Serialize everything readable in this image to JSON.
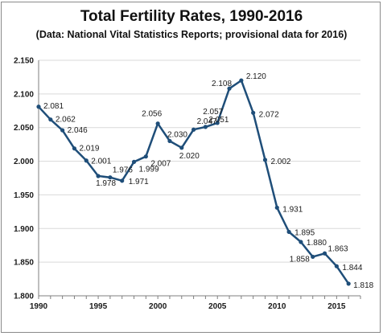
{
  "title": "Total Fertility Rates, 1990-2016",
  "subtitle": "(Data: National Vital Statistics Reports; provisional data for 2016)",
  "colors": {
    "line": "#1f4e79",
    "grid": "#d9d9d9",
    "axis": "#7f7f7f",
    "text": "#1a1a1a"
  },
  "chart_data": {
    "type": "line",
    "title": "Total Fertility Rates, 1990-2016",
    "subtitle": "(Data: National Vital Statistics Reports; provisional data for 2016)",
    "xlabel": "",
    "ylabel": "",
    "x": [
      1990,
      1991,
      1992,
      1993,
      1994,
      1995,
      1996,
      1997,
      1998,
      1999,
      2000,
      2001,
      2002,
      2003,
      2004,
      2005,
      2006,
      2007,
      2008,
      2009,
      2010,
      2011,
      2012,
      2013,
      2014,
      2015,
      2016
    ],
    "y": [
      2.081,
      2.062,
      2.046,
      2.019,
      2.001,
      1.978,
      1.976,
      1.971,
      1.999,
      2.007,
      2.056,
      2.03,
      2.02,
      2.047,
      2.051,
      2.057,
      2.108,
      2.12,
      2.072,
      2.002,
      1.931,
      1.895,
      1.88,
      1.858,
      1.863,
      1.844,
      1.818
    ],
    "data_labels": [
      "2.081",
      "2.062",
      "2.046",
      "2.019",
      "2.001",
      "1.978",
      "1.976",
      "1.971",
      "1.999",
      "2.007",
      "2.056",
      "2.030",
      "2.020",
      "2.047",
      "2.051",
      "2.057",
      "2.108",
      "2.120",
      "2.072",
      "2.002",
      "1.931",
      "1.895",
      "1.880",
      "1.858",
      "1.863",
      "1.844",
      "1.818"
    ],
    "xlim": [
      1990,
      2017
    ],
    "ylim": [
      1.8,
      2.15
    ],
    "x_ticks": [
      "1990",
      "1995",
      "2000",
      "2005",
      "2010",
      "2015"
    ],
    "y_ticks": [
      "1.800",
      "1.850",
      "1.900",
      "1.950",
      "2.000",
      "2.050",
      "2.100",
      "2.150"
    ],
    "grid": "horizontal",
    "legend": "none"
  }
}
